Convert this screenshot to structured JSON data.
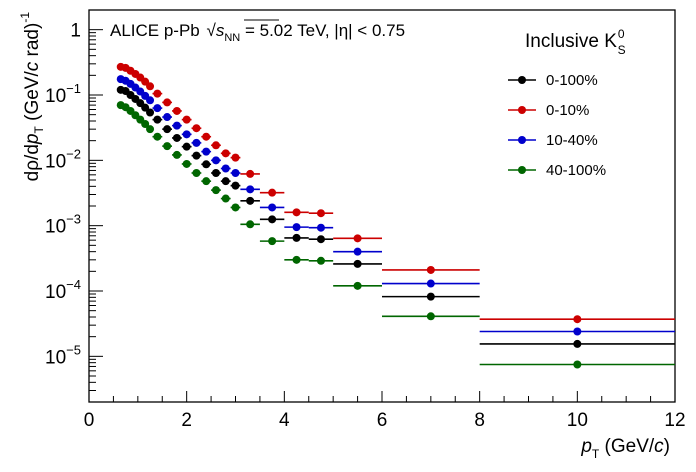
{
  "chart_data": {
    "type": "scatter",
    "annotation": "ALICE p-Pb √s_NN = 5.02 TeV, |η| < 0.75",
    "annotation_parts": {
      "pre": "ALICE p-Pb ",
      "sqrt_s": "s",
      "sqrt_sub": "NN",
      "post": " = 5.02 TeV, |η| < 0.75"
    },
    "xlabel": "p_T (GeV/c)",
    "xlabel_parts": {
      "p": "p",
      "sub": "T",
      "rest": " (GeV/",
      "c": "c",
      "close": ")"
    },
    "ylabel": "dρ/dp_T (GeV/c rad)^-1",
    "ylabel_parts": {
      "a": "dρ/d",
      "p": "p",
      "sub": "T",
      "b": " (GeV/",
      "c": "c",
      "d": " rad)",
      "sup": "-1"
    },
    "xlim": [
      0,
      12
    ],
    "ylim": [
      2e-06,
      2.0
    ],
    "yscale": "log",
    "x_ticks": [
      0,
      2,
      4,
      6,
      8,
      10,
      12
    ],
    "x_tick_labels": [
      "0",
      "2",
      "4",
      "6",
      "8",
      "10",
      "12"
    ],
    "y_ticks": [
      1e-05,
      0.0001,
      0.001,
      0.01,
      0.1,
      1
    ],
    "y_tick_labels": [
      {
        "base": "10",
        "exp": "−5"
      },
      {
        "base": "10",
        "exp": "−4"
      },
      {
        "base": "10",
        "exp": "−3"
      },
      {
        "base": "10",
        "exp": "−2"
      },
      {
        "base": "10",
        "exp": "−1"
      },
      {
        "base": "1",
        "exp": ""
      }
    ],
    "legend_title": {
      "base": "Inclusive K",
      "sup": "0",
      "sub": "S"
    },
    "legend_position": "top-right",
    "x_centers": [
      0.65,
      0.75,
      0.85,
      0.95,
      1.05,
      1.15,
      1.25,
      1.4,
      1.6,
      1.8,
      2.0,
      2.2,
      2.4,
      2.6,
      2.8,
      3.0,
      3.3,
      3.75,
      4.25,
      4.75,
      5.5,
      7.0,
      10.0
    ],
    "x_errors": [
      0.05,
      0.05,
      0.05,
      0.05,
      0.05,
      0.05,
      0.05,
      0.1,
      0.1,
      0.1,
      0.1,
      0.1,
      0.1,
      0.1,
      0.1,
      0.1,
      0.2,
      0.25,
      0.25,
      0.25,
      0.5,
      1.0,
      2.0
    ],
    "series": [
      {
        "name": "0-100%",
        "color": "#000000",
        "values": [
          0.12,
          0.115,
          0.1,
          0.087,
          0.075,
          0.064,
          0.054,
          0.042,
          0.03,
          0.022,
          0.0162,
          0.0118,
          0.0087,
          0.0064,
          0.0048,
          0.0041,
          0.0024,
          0.00125,
          0.00065,
          0.00062,
          0.00026,
          8.2e-05,
          1.55e-05
        ]
      },
      {
        "name": "0-10%",
        "color": "#cc0000",
        "values": [
          0.27,
          0.26,
          0.235,
          0.21,
          0.185,
          0.16,
          0.136,
          0.105,
          0.077,
          0.057,
          0.042,
          0.031,
          0.023,
          0.017,
          0.0128,
          0.011,
          0.0062,
          0.0032,
          0.0016,
          0.00155,
          0.00064,
          0.00021,
          3.7e-05
        ]
      },
      {
        "name": "10-40%",
        "color": "#0000cc",
        "values": [
          0.175,
          0.165,
          0.148,
          0.13,
          0.113,
          0.097,
          0.083,
          0.063,
          0.046,
          0.034,
          0.025,
          0.0185,
          0.0136,
          0.01,
          0.0075,
          0.0064,
          0.0036,
          0.0019,
          0.00095,
          0.00093,
          0.0004,
          0.00013,
          2.4e-05
        ]
      },
      {
        "name": "40-100%",
        "color": "#006600",
        "values": [
          0.07,
          0.065,
          0.057,
          0.049,
          0.042,
          0.036,
          0.03,
          0.023,
          0.0165,
          0.0121,
          0.0088,
          0.0064,
          0.0048,
          0.0035,
          0.0026,
          0.0019,
          0.00105,
          0.00058,
          0.0003,
          0.00029,
          0.00012,
          4.1e-05,
          7.5e-06
        ]
      }
    ]
  }
}
